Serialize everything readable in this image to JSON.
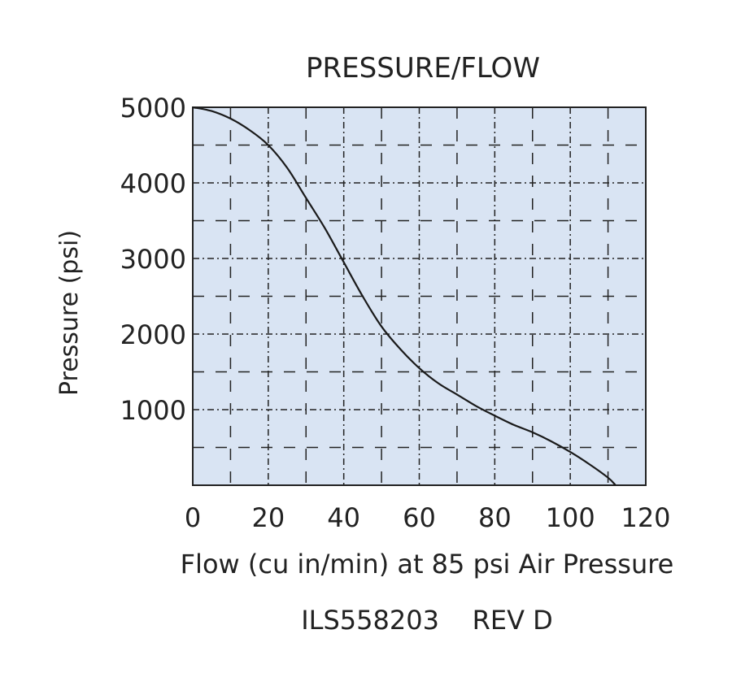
{
  "chart_data": {
    "type": "line",
    "title": "PRESSURE/FLOW",
    "xlabel": "Flow (cu in/min) at 85 psi Air Pressure",
    "ylabel": "Pressure (psi)",
    "footer": "ILS558203    REV D",
    "xlim": [
      0,
      120
    ],
    "ylim": [
      0,
      5000
    ],
    "x_ticks": [
      0,
      20,
      40,
      60,
      80,
      100,
      120
    ],
    "x_tick_labels": [
      "0",
      "20",
      "40",
      "60",
      "80",
      "100",
      "120"
    ],
    "y_ticks": [
      1000,
      2000,
      3000,
      4000,
      5000
    ],
    "y_tick_labels": [
      "1000",
      "2000",
      "3000",
      "4000",
      "5000"
    ],
    "grid": true,
    "series": [
      {
        "x": [
          0,
          5,
          10,
          15,
          20,
          25,
          30,
          35,
          40,
          45,
          50,
          55,
          60,
          65,
          70,
          75,
          80,
          85,
          90,
          95,
          100,
          105,
          110,
          112
        ],
        "y": [
          5000,
          4950,
          4850,
          4700,
          4500,
          4200,
          3800,
          3400,
          2950,
          2500,
          2100,
          1800,
          1550,
          1350,
          1200,
          1050,
          920,
          800,
          700,
          580,
          440,
          280,
          100,
          0
        ],
        "color": "#1a1a1a"
      }
    ],
    "colors": {
      "plot_background": "#d9e4f3",
      "grid": "#222222",
      "line": "#1a1a1a",
      "text": "#222222"
    }
  }
}
